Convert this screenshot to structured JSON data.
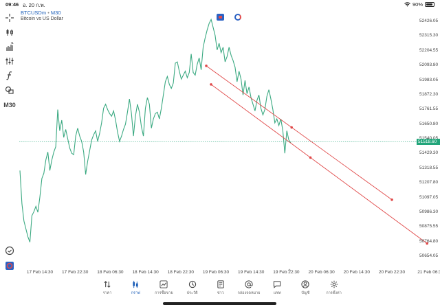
{
  "status_bar": {
    "time": "09:46",
    "date": "อ. 20 ก.พ.",
    "battery_text": "90%",
    "battery_level": 0.9,
    "wifi_icon": "wifi-icon"
  },
  "toolbar": {
    "items": [
      {
        "icon": "crosshair-icon"
      },
      {
        "icon": "chart-type-icon"
      },
      {
        "icon": "indicators-icon"
      },
      {
        "icon": "settings-sliders-icon"
      },
      {
        "icon": "function-icon"
      },
      {
        "icon": "objects-icon"
      },
      {
        "label": "M30"
      },
      {
        "icon": "minimize-icon"
      },
      {
        "icon": "app-logo-icon"
      }
    ]
  },
  "symbol": {
    "name": "BTCUSDm",
    "timeframe": "M30",
    "description": "Bitcoin vs US Dollar"
  },
  "colors": {
    "line": "#3aa981",
    "trendline": "#e04848",
    "accent": "#1e5fb8",
    "current_price_bg": "#22a57a"
  },
  "chart_data": {
    "type": "line",
    "ylim": [
      50600,
      52480
    ],
    "price_ticks": [
      "52426.05",
      "52315.30",
      "52204.55",
      "52093.80",
      "51983.05",
      "51872.30",
      "51761.55",
      "51650.80",
      "51540.05",
      "51429.30",
      "51318.55",
      "51207.80",
      "51097.05",
      "50986.30",
      "50875.55",
      "50764.80",
      "50654.05"
    ],
    "current_price": "51518.60",
    "time_ticks": [
      "17 Feb 14:30",
      "17 Feb 22:30",
      "18 Feb 06:30",
      "18 Feb 14:30",
      "18 Feb 22:30",
      "19 Feb 06:30",
      "19 Feb 14:30",
      "19 Feb 22:30",
      "20 Feb 06:30",
      "20 Feb 14:30",
      "20 Feb 22:30",
      "21 Feb 06:3"
    ],
    "series": [
      {
        "values": [
          51300,
          51050,
          50920,
          50860,
          50800,
          50760,
          50960,
          50990,
          51030,
          50985,
          51100,
          51240,
          51280,
          51380,
          51440,
          51300,
          51380,
          51440,
          51480,
          51760,
          51600,
          51680,
          51550,
          51610,
          51540,
          51470,
          51430,
          51420,
          51560,
          51620,
          51560,
          51520,
          51440,
          51270,
          51370,
          51450,
          51530,
          51570,
          51600,
          51520,
          51580,
          51660,
          51770,
          51800,
          51760,
          51730,
          51710,
          51750,
          51680,
          51590,
          51520,
          51560,
          51610,
          51650,
          51740,
          51840,
          51730,
          51560,
          51710,
          51800,
          51740,
          51630,
          51560,
          51770,
          51850,
          51800,
          51620,
          51690,
          51730,
          51740,
          51690,
          51770,
          51870,
          51970,
          52010,
          51950,
          51920,
          51960,
          52110,
          52120,
          52050,
          51990,
          52020,
          52050,
          52000,
          52040,
          52180,
          52040,
          52020,
          52100,
          52150,
          52060,
          52230,
          52300,
          52360,
          52410,
          52440,
          52380,
          52320,
          52210,
          52260,
          52190,
          52230,
          52120,
          52160,
          52230,
          52170,
          52130,
          52080,
          51970,
          52050,
          51990,
          51870,
          51980,
          51880,
          51930,
          51850,
          51800,
          51750,
          51830,
          51870,
          51770,
          51720,
          51760,
          51860,
          51910,
          51840,
          51760,
          51660,
          51690,
          51640,
          51690,
          51600,
          51430,
          51600,
          51530,
          51510
        ]
      }
    ],
    "trendlines": [
      {
        "start": [
          "19 Feb 06:30",
          52090
        ],
        "end": [
          "20 Feb 22:30",
          51080
        ]
      },
      {
        "start": [
          "19 Feb 06:30",
          51950
        ],
        "end": [
          "21 Feb 06:30",
          50750
        ]
      }
    ]
  },
  "nav": {
    "items": [
      {
        "label": "ราคา",
        "icon": "quotes-icon"
      },
      {
        "label": "กราฟ",
        "icon": "chart-icon",
        "active": true
      },
      {
        "label": "การซื้อขาย",
        "icon": "trade-icon"
      },
      {
        "label": "ประวัติ",
        "icon": "history-icon"
      },
      {
        "label": "ข่าว",
        "icon": "news-icon"
      },
      {
        "label": "กล่องจดหมาย",
        "icon": "mailbox-icon"
      },
      {
        "label": "แชท",
        "icon": "chat-icon"
      },
      {
        "label": "บัญชี",
        "icon": "account-icon"
      },
      {
        "label": "การตั้งค่า",
        "icon": "settings-icon"
      }
    ]
  }
}
